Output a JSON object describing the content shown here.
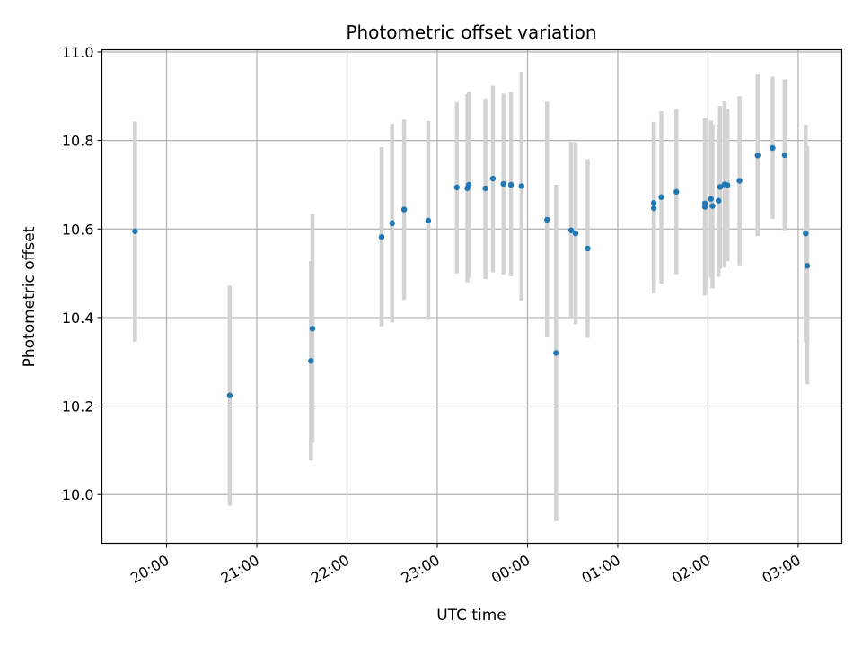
{
  "chart_data": {
    "type": "scatter",
    "title": "Photometric offset variation",
    "xlabel": "UTC time",
    "ylabel": "Photometric offset",
    "x_unit": "UTC clock time (hh:mm), observation night spanning midnight",
    "xlim": [
      "19:17",
      "03:29"
    ],
    "ylim": [
      9.89,
      11.005
    ],
    "x_ticks": [
      "20:00",
      "21:00",
      "22:00",
      "23:00",
      "00:00",
      "01:00",
      "02:00",
      "03:00"
    ],
    "y_ticks": [
      "10.0",
      "10.2",
      "10.4",
      "10.6",
      "10.8",
      "11.0"
    ],
    "y_tick_values": [
      10.0,
      10.2,
      10.4,
      10.6,
      10.8,
      11.0
    ],
    "grid": true,
    "marker_color": "#1f77b4",
    "errorbar_color": "#d3d3d3",
    "points": [
      {
        "x": "19:39",
        "y": 10.595,
        "lo": 10.345,
        "hi": 10.843
      },
      {
        "x": "20:42",
        "y": 10.224,
        "lo": 9.975,
        "hi": 10.472
      },
      {
        "x": "21:36",
        "y": 10.302,
        "lo": 10.077,
        "hi": 10.527
      },
      {
        "x": "21:37",
        "y": 10.375,
        "lo": 10.118,
        "hi": 10.634
      },
      {
        "x": "22:23",
        "y": 10.582,
        "lo": 10.38,
        "hi": 10.785
      },
      {
        "x": "22:30",
        "y": 10.613,
        "lo": 10.389,
        "hi": 10.838
      },
      {
        "x": "22:38",
        "y": 10.644,
        "lo": 10.44,
        "hi": 10.847
      },
      {
        "x": "22:54",
        "y": 10.619,
        "lo": 10.395,
        "hi": 10.844
      },
      {
        "x": "23:13",
        "y": 10.694,
        "lo": 10.5,
        "hi": 10.887
      },
      {
        "x": "23:20",
        "y": 10.692,
        "lo": 10.48,
        "hi": 10.905
      },
      {
        "x": "23:21",
        "y": 10.7,
        "lo": 10.49,
        "hi": 10.91
      },
      {
        "x": "23:32",
        "y": 10.692,
        "lo": 10.487,
        "hi": 10.895
      },
      {
        "x": "23:37",
        "y": 10.714,
        "lo": 10.502,
        "hi": 10.924
      },
      {
        "x": "23:44",
        "y": 10.702,
        "lo": 10.497,
        "hi": 10.906
      },
      {
        "x": "23:49",
        "y": 10.7,
        "lo": 10.493,
        "hi": 10.91
      },
      {
        "x": "23:56",
        "y": 10.697,
        "lo": 10.438,
        "hi": 10.955
      },
      {
        "x": "00:13",
        "y": 10.621,
        "lo": 10.355,
        "hi": 10.888
      },
      {
        "x": "00:19",
        "y": 10.32,
        "lo": 9.94,
        "hi": 10.7
      },
      {
        "x": "00:29",
        "y": 10.597,
        "lo": 10.4,
        "hi": 10.797
      },
      {
        "x": "00:32",
        "y": 10.59,
        "lo": 10.385,
        "hi": 10.796
      },
      {
        "x": "00:40",
        "y": 10.556,
        "lo": 10.354,
        "hi": 10.758
      },
      {
        "x": "01:24",
        "y": 10.659,
        "lo": 10.475,
        "hi": 10.842
      },
      {
        "x": "01:24",
        "y": 10.647,
        "lo": 10.454,
        "hi": 10.84
      },
      {
        "x": "01:29",
        "y": 10.672,
        "lo": 10.477,
        "hi": 10.866
      },
      {
        "x": "01:39",
        "y": 10.684,
        "lo": 10.498,
        "hi": 10.871
      },
      {
        "x": "01:58",
        "y": 10.65,
        "lo": 10.45,
        "hi": 10.85
      },
      {
        "x": "01:58",
        "y": 10.658,
        "lo": 10.467,
        "hi": 10.849
      },
      {
        "x": "02:02",
        "y": 10.668,
        "lo": 10.49,
        "hi": 10.845
      },
      {
        "x": "02:03",
        "y": 10.652,
        "lo": 10.466,
        "hi": 10.837
      },
      {
        "x": "02:07",
        "y": 10.664,
        "lo": 10.492,
        "hi": 10.836
      },
      {
        "x": "02:08",
        "y": 10.695,
        "lo": 10.51,
        "hi": 10.878
      },
      {
        "x": "02:11",
        "y": 10.701,
        "lo": 10.513,
        "hi": 10.888
      },
      {
        "x": "02:13",
        "y": 10.699,
        "lo": 10.527,
        "hi": 10.871
      },
      {
        "x": "02:21",
        "y": 10.709,
        "lo": 10.518,
        "hi": 10.9
      },
      {
        "x": "02:33",
        "y": 10.766,
        "lo": 10.584,
        "hi": 10.949
      },
      {
        "x": "02:43",
        "y": 10.783,
        "lo": 10.623,
        "hi": 10.944
      },
      {
        "x": "02:51",
        "y": 10.767,
        "lo": 10.597,
        "hi": 10.938
      },
      {
        "x": "03:05",
        "y": 10.59,
        "lo": 10.345,
        "hi": 10.836
      },
      {
        "x": "03:06",
        "y": 10.517,
        "lo": 10.249,
        "hi": 10.787
      }
    ]
  }
}
